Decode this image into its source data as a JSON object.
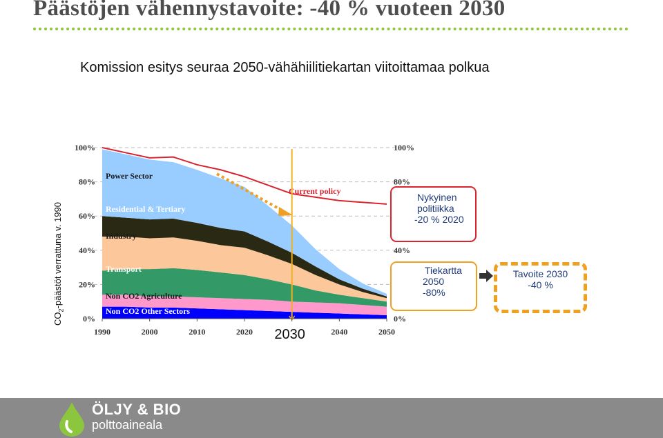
{
  "header": {
    "title": "Päästöjen vähennystavoite: -40 % vuoteen 2030",
    "subtitle": "Komission esitys seuraa 2050-vähähiilitiekartan viitoittamaa polkua"
  },
  "ylabel": "CO2-päästöt verrattuna v. 1990",
  "colors": {
    "power": "#99ccff",
    "residential": "#2a2a14",
    "industry": "#fcc79a",
    "transport": "#339966",
    "agriculture": "#ff99cc",
    "other": "#0000ff",
    "current_policy": "#d9232e",
    "path_orange": "#f0a020",
    "title_rule": "#8cc63f"
  },
  "chart_data": {
    "type": "area",
    "x": [
      1990,
      1995,
      2000,
      2005,
      2010,
      2015,
      2020,
      2025,
      2030,
      2035,
      2040,
      2045,
      2050
    ],
    "xticks": [
      "1990",
      "2000",
      "2010",
      "2020",
      "2030",
      "2040",
      "2050"
    ],
    "yticks_left": [
      "0%",
      "20%",
      "40%",
      "60%",
      "80%",
      "100%"
    ],
    "yticks_right": [
      "0%",
      "20%",
      "40%",
      "60%",
      "80%",
      "100%"
    ],
    "ylim": [
      0,
      100
    ],
    "grid": true,
    "stacked": true,
    "series": [
      {
        "name": "Non CO2 Other Sectors",
        "values": [
          7,
          7,
          6.5,
          6.5,
          6,
          5.5,
          5,
          4.5,
          4,
          3.5,
          3,
          2.5,
          2
        ]
      },
      {
        "name": "Non CO2 Agriculture",
        "values": [
          7,
          7,
          6.5,
          6.5,
          6.5,
          6.5,
          6.5,
          6.5,
          6,
          6,
          6,
          5.5,
          5
        ]
      },
      {
        "name": "Transport",
        "values": [
          14,
          15,
          16,
          16.5,
          16,
          15,
          14,
          12,
          10,
          7,
          5,
          4,
          3
        ]
      },
      {
        "name": "Industry",
        "values": [
          20,
          19,
          18,
          18,
          17,
          16,
          16,
          14,
          12,
          9,
          6,
          3.5,
          2
        ]
      },
      {
        "name": "Residential & Tertiary",
        "values": [
          12,
          11,
          11,
          11,
          10.5,
          10,
          9.5,
          8,
          6.5,
          5,
          3,
          2,
          1
        ]
      },
      {
        "name": "Power Sector",
        "values": [
          39,
          37,
          35,
          33,
          31,
          29,
          26,
          21,
          16,
          10,
          6,
          3,
          1.5
        ]
      }
    ],
    "current_policy": {
      "name": "Current policy",
      "values": [
        100,
        97,
        94,
        94.5,
        90,
        87,
        83,
        78,
        73,
        71,
        69,
        68,
        67
      ]
    },
    "highlight_x": "2030"
  },
  "callouts": {
    "current": [
      "Nykyinen",
      "politiikka",
      "-20 % 2020"
    ],
    "roadmap": [
      "Tiekartta",
      "2050",
      "-80%"
    ],
    "target": [
      "Tavoite 2030",
      "-40 %"
    ]
  },
  "footer": {
    "brand_line1": "ÖLJY & BIO",
    "brand_line2": "polttoaineala"
  }
}
